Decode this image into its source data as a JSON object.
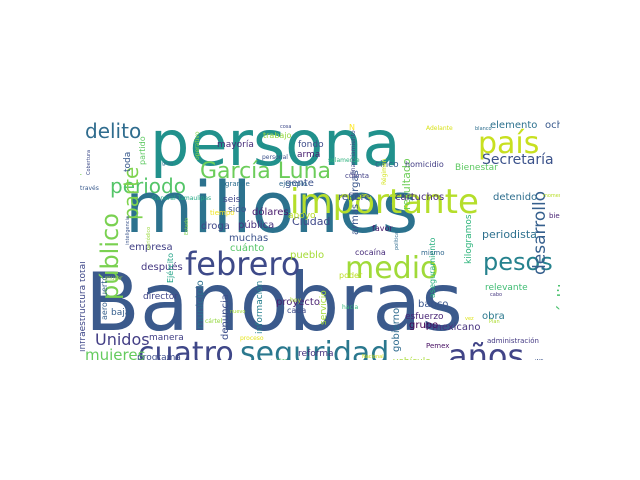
{
  "words": [
    {
      "text": "Banobras",
      "color": "#3b5a8c"
    },
    {
      "text": "millones",
      "color": "#2c728e"
    },
    {
      "text": "persona",
      "color": "#21918c"
    },
    {
      "text": "cuatro",
      "color": "#3f4788"
    },
    {
      "text": "seguridad",
      "color": "#2a788e"
    },
    {
      "text": "años",
      "color": "#414487"
    },
    {
      "text": "importante",
      "color": "#b5de2b"
    },
    {
      "text": "febrero",
      "color": "#3e4a89"
    },
    {
      "text": "medio",
      "color": "#a0da39"
    },
    {
      "text": "país",
      "color": "#c8e020"
    },
    {
      "text": "García Luna",
      "color": "#6ccd5a"
    },
    {
      "text": "público",
      "color": "#7ad151"
    },
    {
      "text": "pesos",
      "color": "#26828e"
    },
    {
      "text": "delito",
      "color": "#2f6c8e"
    },
    {
      "text": "Secretaría",
      "color": "#3b528b"
    },
    {
      "text": "periodo",
      "color": "#54c568"
    },
    {
      "text": "parte",
      "color": "#7fd34e"
    },
    {
      "text": "desarrollo",
      "color": "#355f8d"
    },
    {
      "text": "crédito",
      "color": "#4ac16d"
    },
    {
      "text": "Unidos",
      "color": "#433e85"
    },
    {
      "text": "mujeres",
      "color": "#65cb5e"
    },
    {
      "text": "Nacional",
      "color": "#23898e"
    },
    {
      "text": "periodista",
      "color": "#2d708e"
    },
    {
      "text": "mexicano",
      "color": "#46327e"
    },
    {
      "text": "Ciudad",
      "color": "#3f4889"
    },
    {
      "text": "resultado",
      "color": "#6ece58"
    },
    {
      "text": "armas largas",
      "color": "#39558c"
    },
    {
      "text": "cartuchos",
      "color": "#472d7b"
    },
    {
      "text": "refiere",
      "color": "#3c4f8a"
    },
    {
      "text": "detenido",
      "color": "#2e6e8e"
    },
    {
      "text": "elemento",
      "color": "#2c718e"
    },
    {
      "text": "ocho",
      "color": "#38598c"
    },
    {
      "text": "apoyo",
      "color": "#bade28"
    },
    {
      "text": "pueblo",
      "color": "#a5db36"
    },
    {
      "text": "proyecto",
      "color": "#481f70"
    },
    {
      "text": "denuncia",
      "color": "#3d4e8a"
    },
    {
      "text": "dólares",
      "color": "#481b6d"
    },
    {
      "text": "pública",
      "color": "#46327e"
    },
    {
      "text": "empresa",
      "color": "#424186"
    },
    {
      "text": "después",
      "color": "#453882"
    },
    {
      "text": "muchas",
      "color": "#3b528b"
    },
    {
      "text": "droga",
      "color": "#3f4788"
    },
    {
      "text": "cuánto",
      "color": "#56c667"
    },
    {
      "text": "gente",
      "color": "#3b518b"
    },
    {
      "text": "municipio",
      "color": "#2d708e"
    },
    {
      "text": "información",
      "color": "#277f8e"
    },
    {
      "text": "director",
      "color": "#404588"
    },
    {
      "text": "baja",
      "color": "#355e8d"
    },
    {
      "text": "manera",
      "color": "#424086"
    },
    {
      "text": "programa",
      "color": "#3d4d8a"
    },
    {
      "text": "reforma",
      "color": "#46337e"
    },
    {
      "text": "institución",
      "color": "#39568c"
    },
    {
      "text": "vehículo",
      "color": "#a8db34"
    },
    {
      "text": "esfuerzo",
      "color": "#482576"
    },
    {
      "text": "grupo",
      "color": "#440154"
    },
    {
      "text": "banco",
      "color": "#39558c"
    },
    {
      "text": "gobierno",
      "color": "#2f6b8e"
    },
    {
      "text": "obra",
      "color": "#2a788e"
    },
    {
      "text": "relevante",
      "color": "#3fbc73"
    },
    {
      "text": "servicio",
      "color": "#a2da37"
    },
    {
      "text": "cocaína",
      "color": "#472c7a"
    },
    {
      "text": "favor",
      "color": "#481a6c"
    },
    {
      "text": "seis",
      "color": "#404688"
    },
    {
      "text": "sido",
      "color": "#3b528b"
    },
    {
      "text": "fondo",
      "color": "#3e4c8a"
    },
    {
      "text": "arma",
      "color": "#481f70"
    },
    {
      "text": "trabajo",
      "color": "#95d840"
    },
    {
      "text": "mayoría",
      "color": "#472c7a"
    },
    {
      "text": "toda",
      "color": "#38598c"
    },
    {
      "text": "cinco",
      "color": "#355f8d"
    },
    {
      "text": "homicidio",
      "color": "#433e85"
    },
    {
      "text": "Bienestar",
      "color": "#5ec962"
    },
    {
      "text": "infraestructura total",
      "color": "#3f4889"
    },
    {
      "text": "aeropuerto",
      "color": "#355f8d"
    },
    {
      "text": "Ejército",
      "color": "#20a386"
    },
    {
      "text": "Pemex",
      "color": "#471063"
    },
    {
      "text": "kilogramos",
      "color": "#2fb47c"
    },
    {
      "text": "aseguramiento",
      "color": "#29af7f"
    },
    {
      "text": "cada",
      "color": "#3e4a89"
    },
    {
      "text": "poder",
      "color": "#bddf26"
    },
    {
      "text": "hacia",
      "color": "#35b779"
    },
    {
      "text": "mismo",
      "color": "#31688e"
    },
    {
      "text": "cuenta",
      "color": "#424086"
    },
    {
      "text": "proceso",
      "color": "#e5e419"
    },
    {
      "text": "administración",
      "color": "#443a83"
    },
    {
      "text": "cártel",
      "color": "#95d840"
    },
    {
      "text": "partido",
      "color": "#5ec962"
    },
    {
      "text": "Adelante",
      "color": "#d8e219"
    },
    {
      "text": "bien",
      "color": "#482374"
    },
    {
      "text": "hoy",
      "color": "#addc30"
    },
    {
      "text": "solamente",
      "color": "#2db27d"
    },
    {
      "text": "personal",
      "color": "#3b528b"
    },
    {
      "text": "financiamiento",
      "color": "#414487"
    },
    {
      "text": "ejemplo",
      "color": "#31688e"
    },
    {
      "text": "grande",
      "color": "#2e6e8e"
    },
    {
      "text": "tiempo",
      "color": "#f1e51d"
    },
    {
      "text": "General Tamaulipas",
      "color": "#22a884"
    },
    {
      "text": "operativo",
      "color": "#86d549"
    },
    {
      "text": "Operaciones",
      "color": "#7ad151"
    },
    {
      "text": "Cobertura",
      "color": "#3e4c8a"
    },
    {
      "text": "través",
      "color": "#38598c"
    },
    {
      "text": "inteligencia",
      "color": "#3a538b"
    },
    {
      "text": "periódico",
      "color": "#9bd93c"
    },
    {
      "text": "mujer",
      "color": "#9bd93c"
    },
    {
      "text": "política",
      "color": "#2f6c8e"
    },
    {
      "text": "Régimen",
      "color": "#d2e21b"
    },
    {
      "text": "momento",
      "color": "#b8de29"
    },
    {
      "text": "Plan",
      "color": "#addc30"
    },
    {
      "text": "bienes",
      "color": "#443983"
    },
    {
      "text": "cabo",
      "color": "#453781"
    },
    {
      "text": "vez",
      "color": "#dde318"
    },
    {
      "text": "gran",
      "color": "#2c718e"
    },
    {
      "text": "cosa",
      "color": "#3e4a89"
    },
    {
      "text": "hizo",
      "color": "#4cc26c"
    },
    {
      "text": "INE",
      "color": "#3b528b"
    },
    {
      "text": "nuevo",
      "color": "#a5db36"
    },
    {
      "text": "blanco",
      "color": "#2e6e8e"
    },
    {
      "text": "Estado",
      "color": "#7fd34e"
    },
    {
      "text": "Nacional",
      "color": "#d5e21a"
    },
    {
      "text": "N",
      "color": "#fde725"
    }
  ]
}
